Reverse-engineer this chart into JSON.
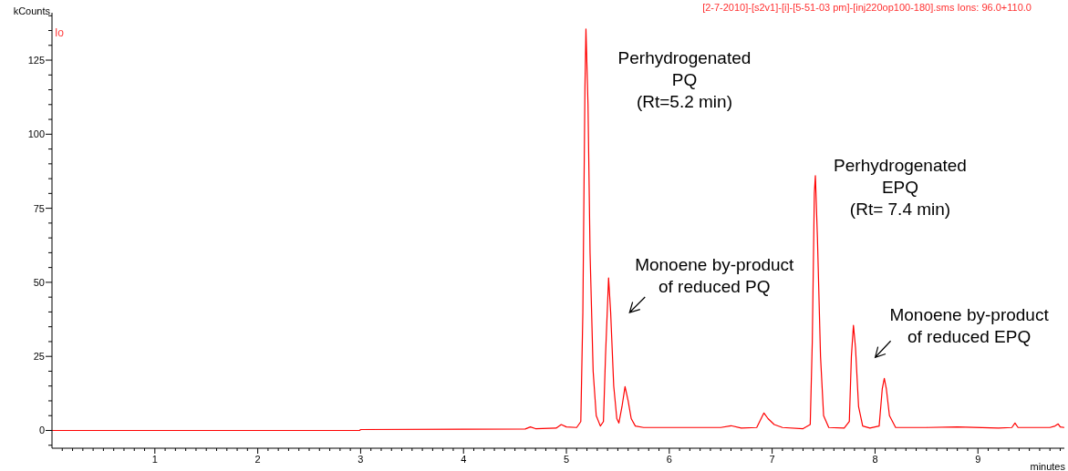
{
  "chart_data": {
    "type": "line",
    "title": "[2-7-2010]-[s2v1]-[i]-[5-51-03 pm]-[inj220op100-180].sms Ions: 96.0+110.0",
    "xlabel": "minutes",
    "ylabel": "kCounts",
    "x": [
      0,
      2.99,
      3.0,
      4.0,
      4.6,
      4.65,
      4.7,
      4.9,
      4.95,
      5.0,
      5.1,
      5.14,
      5.16,
      5.18,
      5.19,
      5.21,
      5.23,
      5.26,
      5.29,
      5.33,
      5.36,
      5.38,
      5.41,
      5.43,
      5.46,
      5.49,
      5.51,
      5.54,
      5.57,
      5.6,
      5.63,
      5.67,
      5.75,
      6.0,
      6.5,
      6.6,
      6.7,
      6.85,
      6.9,
      6.92,
      6.96,
      7.02,
      7.1,
      7.3,
      7.37,
      7.39,
      7.41,
      7.42,
      7.44,
      7.47,
      7.5,
      7.55,
      7.7,
      7.75,
      7.77,
      7.79,
      7.81,
      7.84,
      7.88,
      7.95,
      8.04,
      8.07,
      8.09,
      8.11,
      8.14,
      8.2,
      8.5,
      8.8,
      9.2,
      9.33,
      9.36,
      9.39,
      9.7,
      9.75,
      9.78,
      9.8,
      9.84
    ],
    "series": [
      {
        "color": "#ff0000",
        "values": [
          0,
          0,
          0.3,
          0.4,
          0.5,
          1.2,
          0.6,
          0.8,
          2.0,
          1.2,
          1.0,
          3,
          40,
          115,
          135.5,
          110,
          60,
          20,
          5,
          1.5,
          3,
          25,
          51.5,
          40,
          15,
          4,
          2.5,
          8,
          14.8,
          10,
          4,
          1.5,
          1,
          1,
          1,
          1.6,
          0.8,
          1,
          4.5,
          5.9,
          4,
          2,
          1,
          0.6,
          2,
          30,
          80,
          86,
          65,
          25,
          5,
          1,
          0.8,
          3,
          25,
          35.5,
          28,
          8,
          1.5,
          0.8,
          1.5,
          14,
          17.6,
          14,
          5,
          1,
          1,
          1.2,
          0.8,
          1,
          2.5,
          1,
          1,
          1.5,
          2.2,
          1.2,
          1
        ]
      }
    ],
    "xlim": [
      0,
      9.84
    ],
    "ylim": [
      -6,
      141
    ],
    "xticks": [
      {
        "value": 0.1,
        "label": null
      },
      {
        "value": 0.2,
        "label": null
      },
      {
        "value": 0.3,
        "label": null
      },
      {
        "value": 0.4,
        "label": null
      },
      {
        "value": 0.5,
        "label": null
      },
      {
        "value": 0.6,
        "label": null
      },
      {
        "value": 0.7,
        "label": null
      },
      {
        "value": 0.8,
        "label": null
      },
      {
        "value": 0.9,
        "label": null
      },
      1,
      {
        "value": 1.1,
        "label": null
      },
      {
        "value": 1.2,
        "label": null
      },
      {
        "value": 1.3,
        "label": null
      },
      {
        "value": 1.4,
        "label": null
      },
      {
        "value": 1.5,
        "label": null
      },
      {
        "value": 1.6,
        "label": null
      },
      {
        "value": 1.7,
        "label": null
      },
      {
        "value": 1.8,
        "label": null
      },
      {
        "value": 1.9,
        "label": null
      },
      2,
      {
        "value": 2.1,
        "label": null
      },
      {
        "value": 2.2,
        "label": null
      },
      {
        "value": 2.3,
        "label": null
      },
      {
        "value": 2.4,
        "label": null
      },
      {
        "value": 2.5,
        "label": null
      },
      {
        "value": 2.6,
        "label": null
      },
      {
        "value": 2.7,
        "label": null
      },
      {
        "value": 2.8,
        "label": null
      },
      {
        "value": 2.9,
        "label": null
      },
      3,
      {
        "value": 3.1,
        "label": null
      },
      {
        "value": 3.2,
        "label": null
      },
      {
        "value": 3.3,
        "label": null
      },
      {
        "value": 3.4,
        "label": null
      },
      {
        "value": 3.5,
        "label": null
      },
      {
        "value": 3.6,
        "label": null
      },
      {
        "value": 3.7,
        "label": null
      },
      {
        "value": 3.8,
        "label": null
      },
      {
        "value": 3.9,
        "label": null
      },
      4,
      {
        "value": 4.1,
        "label": null
      },
      {
        "value": 4.2,
        "label": null
      },
      {
        "value": 4.3,
        "label": null
      },
      {
        "value": 4.4,
        "label": null
      },
      {
        "value": 4.5,
        "label": null
      },
      {
        "value": 4.6,
        "label": null
      },
      {
        "value": 4.7,
        "label": null
      },
      {
        "value": 4.8,
        "label": null
      },
      {
        "value": 4.9,
        "label": null
      },
      5,
      {
        "value": 5.1,
        "label": null
      },
      {
        "value": 5.2,
        "label": null
      },
      {
        "value": 5.3,
        "label": null
      },
      {
        "value": 5.4,
        "label": null
      },
      {
        "value": 5.5,
        "label": null
      },
      {
        "value": 5.6,
        "label": null
      },
      {
        "value": 5.7,
        "label": null
      },
      {
        "value": 5.8,
        "label": null
      },
      {
        "value": 5.9,
        "label": null
      },
      6,
      {
        "value": 6.1,
        "label": null
      },
      {
        "value": 6.2,
        "label": null
      },
      {
        "value": 6.3,
        "label": null
      },
      {
        "value": 6.4,
        "label": null
      },
      {
        "value": 6.5,
        "label": null
      },
      {
        "value": 6.6,
        "label": null
      },
      {
        "value": 6.7,
        "label": null
      },
      {
        "value": 6.8,
        "label": null
      },
      {
        "value": 6.9,
        "label": null
      },
      7,
      {
        "value": 7.1,
        "label": null
      },
      {
        "value": 7.2,
        "label": null
      },
      {
        "value": 7.3,
        "label": null
      },
      {
        "value": 7.4,
        "label": null
      },
      {
        "value": 7.5,
        "label": null
      },
      {
        "value": 7.6,
        "label": null
      },
      {
        "value": 7.7,
        "label": null
      },
      {
        "value": 7.8,
        "label": null
      },
      {
        "value": 7.9,
        "label": null
      },
      8,
      {
        "value": 8.1,
        "label": null
      },
      {
        "value": 8.2,
        "label": null
      },
      {
        "value": 8.3,
        "label": null
      },
      {
        "value": 8.4,
        "label": null
      },
      {
        "value": 8.5,
        "label": null
      },
      {
        "value": 8.6,
        "label": null
      },
      {
        "value": 8.7,
        "label": null
      },
      {
        "value": 8.8,
        "label": null
      },
      {
        "value": 8.9,
        "label": null
      },
      9,
      {
        "value": 9.1,
        "label": null
      },
      {
        "value": 9.2,
        "label": null
      },
      {
        "value": 9.3,
        "label": null
      },
      {
        "value": 9.4,
        "label": null
      },
      {
        "value": 9.5,
        "label": null
      },
      {
        "value": 9.6,
        "label": null
      },
      {
        "value": 9.7,
        "label": null
      },
      {
        "value": 9.8,
        "label": null
      }
    ],
    "yticks": [
      {
        "value": -5,
        "label": null
      },
      0,
      {
        "value": 5,
        "label": null
      },
      {
        "value": 10,
        "label": null
      },
      {
        "value": 15,
        "label": null
      },
      {
        "value": 20,
        "label": null
      },
      25,
      {
        "value": 30,
        "label": null
      },
      {
        "value": 35,
        "label": null
      },
      {
        "value": 40,
        "label": null
      },
      {
        "value": 45,
        "label": null
      },
      50,
      {
        "value": 55,
        "label": null
      },
      {
        "value": 60,
        "label": null
      },
      {
        "value": 65,
        "label": null
      },
      {
        "value": 70,
        "label": null
      },
      75,
      {
        "value": 80,
        "label": null
      },
      {
        "value": 85,
        "label": null
      },
      {
        "value": 90,
        "label": null
      },
      {
        "value": 95,
        "label": null
      },
      100,
      {
        "value": 105,
        "label": null
      },
      {
        "value": 110,
        "label": null
      },
      {
        "value": 115,
        "label": null
      },
      {
        "value": 120,
        "label": null
      },
      125,
      {
        "value": 130,
        "label": null
      },
      {
        "value": 135,
        "label": null
      },
      {
        "value": 140,
        "label": null
      }
    ],
    "marker": "none",
    "line_style": "solid",
    "annotations": [
      "Io",
      {
        "text": "Perhydrogenated\nPQ\n(Rt=5.2 min)",
        "x": 5.19,
        "y": 135.5
      },
      {
        "text": "Monoene by-product\nof reduced PQ",
        "x": 5.41,
        "y": 51.5
      },
      {
        "text": "Perhydrogenated\nEPQ\n(Rt= 7.4 min)",
        "x": 7.42,
        "y": 86
      },
      {
        "text": "Monoene by-product\nof reduced EPQ",
        "x": 8.09,
        "y": 17.6
      }
    ]
  }
}
